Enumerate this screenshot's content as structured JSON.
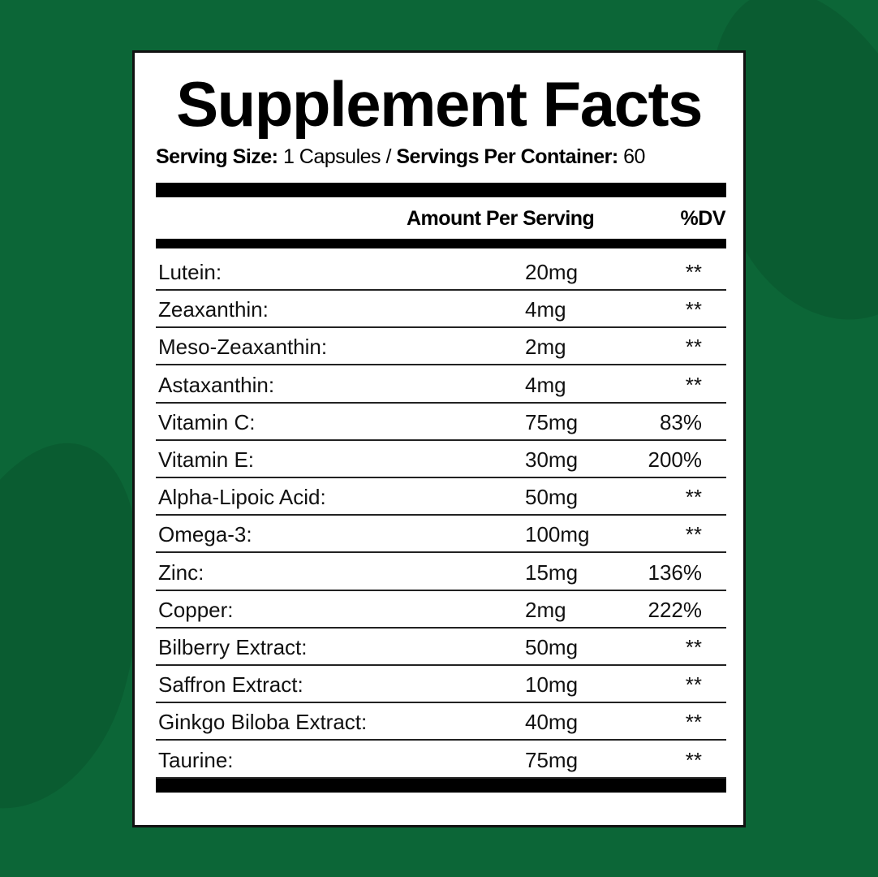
{
  "label": {
    "title": "Supplement Facts",
    "serving_size_label": "Serving Size:",
    "serving_size_value": "1 Capsules /",
    "servings_per_container_label": "Servings Per Container:",
    "servings_per_container_value": "60",
    "header_amount": "Amount Per Serving",
    "header_dv": "%DV",
    "rows": [
      {
        "name": "Lutein:",
        "amount": "20mg",
        "dv": "**"
      },
      {
        "name": "Zeaxanthin:",
        "amount": "4mg",
        "dv": "**"
      },
      {
        "name": "Meso-Zeaxanthin:",
        "amount": "2mg",
        "dv": "**"
      },
      {
        "name": "Astaxanthin:",
        "amount": "4mg",
        "dv": "**"
      },
      {
        "name": "Vitamin C:",
        "amount": "75mg",
        "dv": "83%"
      },
      {
        "name": "Vitamin E:",
        "amount": "30mg",
        "dv": "200%"
      },
      {
        "name": "Alpha-Lipoic Acid:",
        "amount": "50mg",
        "dv": "**"
      },
      {
        "name": "Omega-3:",
        "amount": "100mg",
        "dv": "**"
      },
      {
        "name": "Zinc:",
        "amount": "15mg",
        "dv": "136%"
      },
      {
        "name": "Copper:",
        "amount": "2mg",
        "dv": "222%"
      },
      {
        "name": "Bilberry Extract:",
        "amount": "50mg",
        "dv": "**"
      },
      {
        "name": "Saffron Extract:",
        "amount": "10mg",
        "dv": "**"
      },
      {
        "name": "Ginkgo Biloba Extract:",
        "amount": "40mg",
        "dv": "**"
      },
      {
        "name": "Taurine:",
        "amount": "75mg",
        "dv": "**"
      }
    ]
  },
  "colors": {
    "background": "#0c6637",
    "leaf": "#0a5a30",
    "panel": "#ffffff",
    "text": "#000000"
  }
}
